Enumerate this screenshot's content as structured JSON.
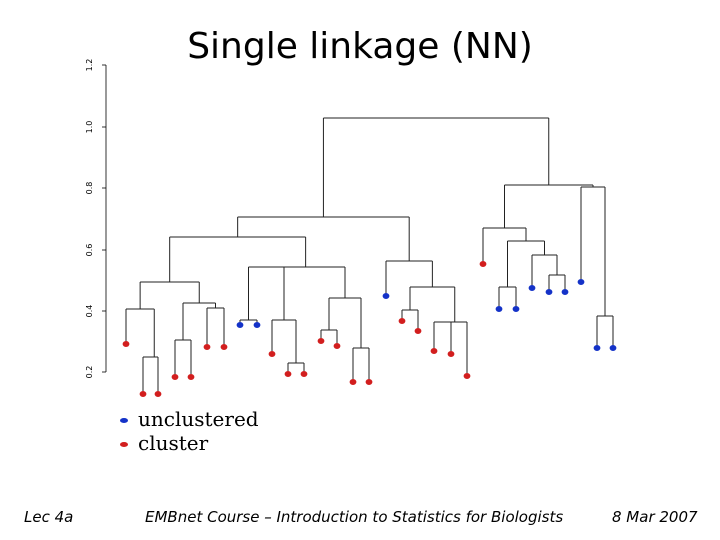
{
  "slide": {
    "title": "Single linkage (NN)"
  },
  "axis": {
    "ticks": [
      "1.2",
      "1.0",
      "0.8",
      "0.6",
      "0.4",
      "0.2"
    ]
  },
  "legend": [
    {
      "label": "unclustered",
      "color": "#1432c8"
    },
    {
      "label": "cluster",
      "color": "#d21e1e"
    }
  ],
  "colors": {
    "red": "#d21e1e",
    "blue": "#1432c8",
    "line": "#222222"
  },
  "footer": {
    "left": "Lec 4a",
    "center": "EMBnet Course – Introduction to Statistics for Biologists",
    "right": "8 Mar 2007"
  },
  "leaves": [
    {
      "color": "red"
    },
    {
      "color": "red"
    },
    {
      "color": "red"
    },
    {
      "color": "red"
    },
    {
      "color": "red"
    },
    {
      "color": "red"
    },
    {
      "color": "red"
    },
    {
      "color": "blue"
    },
    {
      "color": "blue"
    },
    {
      "color": "red"
    },
    {
      "color": "red"
    },
    {
      "color": "red"
    },
    {
      "color": "red"
    },
    {
      "color": "red"
    },
    {
      "color": "red"
    },
    {
      "color": "red"
    },
    {
      "color": "blue"
    },
    {
      "color": "red"
    },
    {
      "color": "red"
    },
    {
      "color": "red"
    },
    {
      "color": "red"
    },
    {
      "color": "red"
    },
    {
      "color": "red"
    },
    {
      "color": "blue"
    },
    {
      "color": "blue"
    },
    {
      "color": "blue"
    },
    {
      "color": "blue"
    },
    {
      "color": "blue"
    },
    {
      "color": "blue"
    },
    {
      "color": "blue"
    },
    {
      "color": "blue"
    },
    {
      "color": "blue"
    }
  ]
}
